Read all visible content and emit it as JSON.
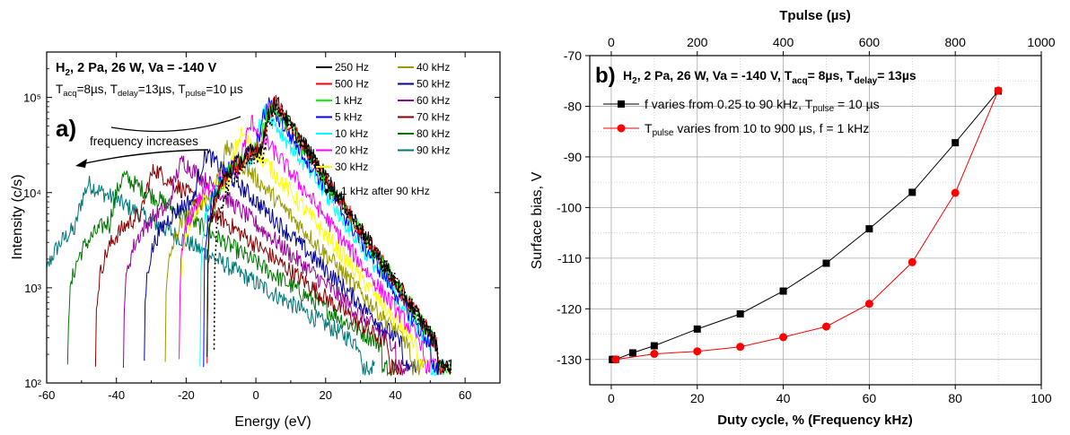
{
  "chart_data": [
    {
      "type": "line",
      "panel_label": "a)",
      "title_line1": "H₂, 2 Pa, 26 W, Va  = -140 V",
      "title_line2": "T_acq=8µs, T_delay=13µs, T_pulse=10 µs",
      "annotation": "frequency increases",
      "xlabel": "Energy (eV)",
      "ylabel": "Intensity (c/s)",
      "xlim": [
        -60,
        70
      ],
      "ylim": [
        100,
        300000
      ],
      "yscale": "log",
      "x_ticks": [
        "-60",
        "-40",
        "-20",
        "0",
        "20",
        "40",
        "60"
      ],
      "y_ticks": [
        "10²",
        "10³",
        "10⁴",
        "10⁵"
      ],
      "series": [
        {
          "name": "250 Hz",
          "color": "#000000",
          "peak_x": 5.5,
          "peak_y": 95000,
          "start_x": -14,
          "end_x": 52
        },
        {
          "name": "500 Hz",
          "color": "#ff0000",
          "peak_x": 5.5,
          "peak_y": 92000,
          "start_x": -14,
          "end_x": 52
        },
        {
          "name": "1 kHz",
          "color": "#00ff00",
          "peak_x": 5.0,
          "peak_y": 90000,
          "start_x": -14,
          "end_x": 52
        },
        {
          "name": "5 kHz",
          "color": "#0000ff",
          "peak_x": 4.0,
          "peak_y": 88000,
          "start_x": -15,
          "end_x": 50
        },
        {
          "name": "10 kHz",
          "color": "#00ffff",
          "peak_x": 3.0,
          "peak_y": 75000,
          "start_x": -16,
          "end_x": 50
        },
        {
          "name": "20 kHz",
          "color": "#ff00ff",
          "peak_x": -1.0,
          "peak_y": 55000,
          "start_x": -22,
          "end_x": 48
        },
        {
          "name": "30 kHz",
          "color": "#ffff00",
          "peak_x": -4.0,
          "peak_y": 42000,
          "start_x": -22,
          "end_x": 46
        },
        {
          "name": "40 kHz",
          "color": "#999900",
          "peak_x": -8.0,
          "peak_y": 30000,
          "start_x": -26,
          "end_x": 44
        },
        {
          "name": "50 kHz",
          "color": "#000099",
          "peak_x": -14.0,
          "peak_y": 26000,
          "start_x": -32,
          "end_x": 42
        },
        {
          "name": "60 kHz",
          "color": "#990099",
          "peak_x": -21.0,
          "peak_y": 22000,
          "start_x": -38,
          "end_x": 40
        },
        {
          "name": "70 kHz",
          "color": "#880000",
          "peak_x": -29.0,
          "peak_y": 18000,
          "start_x": -46,
          "end_x": 38
        },
        {
          "name": "80 kHz",
          "color": "#007700",
          "peak_x": -38.0,
          "peak_y": 15000,
          "start_x": -54,
          "end_x": 36
        },
        {
          "name": "90 kHz",
          "color": "#007777",
          "peak_x": -48.0,
          "peak_y": 12500,
          "start_x": -62,
          "end_x": 30
        }
      ],
      "extra_series": {
        "name": "1 kHz after 90 kHz",
        "color": "#000000",
        "style": "dotted"
      }
    },
    {
      "type": "line",
      "panel_label": "b)",
      "title": "H₂, 2 Pa, 26 W, Va  = -140 V, T_acq= 8µs, T_delay= 13µs",
      "xlabel": "Duty cycle, % (Frequency kHz)",
      "ylabel": "Surface bias, V",
      "x2label": "Tpulse (µs)",
      "xlim": [
        -5,
        100
      ],
      "ylim": [
        -135,
        -70
      ],
      "x2lim": [
        -50,
        1000
      ],
      "x_ticks": [
        "0",
        "20",
        "40",
        "60",
        "80",
        "100"
      ],
      "x2_ticks": [
        "0",
        "200",
        "400",
        "600",
        "800",
        "1000"
      ],
      "y_ticks": [
        "-70",
        "-80",
        "-90",
        "-100",
        "-110",
        "-120",
        "-130"
      ],
      "grid": true,
      "series": [
        {
          "name": "f varies from 0.25 to 90 kHz, T_pulse = 10 µs",
          "color": "#000000",
          "marker": "square",
          "x": [
            0.25,
            0.5,
            1,
            5,
            10,
            20,
            30,
            40,
            50,
            60,
            70,
            80,
            90
          ],
          "y": [
            -130,
            -130,
            -130,
            -128.7,
            -127.3,
            -124,
            -121,
            -116.5,
            -111,
            -104.2,
            -97,
            -87.2,
            -77
          ]
        },
        {
          "name": "T_pulse varies from 10 to 900 µs, f = 1 kHz",
          "color": "#ff0000",
          "marker": "circle",
          "x": [
            1,
            10,
            20,
            30,
            40,
            50,
            60,
            70,
            80,
            90
          ],
          "y": [
            -130,
            -128.9,
            -128.4,
            -127.5,
            -125.6,
            -123.5,
            -119,
            -110.8,
            -97.1,
            -76.9
          ]
        }
      ]
    }
  ]
}
